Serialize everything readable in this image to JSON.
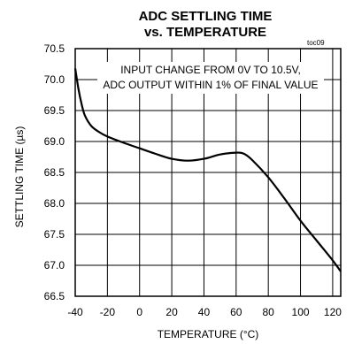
{
  "chart_data": {
    "type": "line",
    "title": "ADC SETTLING TIME",
    "subtitle": "vs. TEMPERATURE",
    "tag": "toc09",
    "xlabel": "TEMPERATURE (°C)",
    "ylabel": "SETTLING TIME (µs)",
    "xlim": [
      -40,
      125
    ],
    "ylim": [
      66.5,
      70.5
    ],
    "xticks": [
      -40,
      -20,
      0,
      20,
      40,
      60,
      80,
      100,
      120
    ],
    "yticks": [
      70.5,
      70.0,
      69.5,
      69.0,
      68.5,
      68.0,
      67.5,
      67.0,
      66.5
    ],
    "grid": true,
    "annotation": [
      "INPUT CHANGE FROM 0V TO 10.5V,",
      "ADC OUTPUT WITHIN 1% OF FINAL VALUE"
    ],
    "series": [
      {
        "x": [
          -40,
          -38,
          -36,
          -34,
          -30,
          -25,
          -20,
          -10,
          0,
          10,
          20,
          30,
          40,
          50,
          60,
          65,
          70,
          80,
          90,
          100,
          110,
          120,
          125
        ],
        "y": [
          70.18,
          69.85,
          69.6,
          69.42,
          69.25,
          69.15,
          69.08,
          68.98,
          68.89,
          68.8,
          68.72,
          68.69,
          68.72,
          68.79,
          68.82,
          68.8,
          68.7,
          68.42,
          68.08,
          67.72,
          67.4,
          67.08,
          66.9
        ]
      }
    ]
  }
}
